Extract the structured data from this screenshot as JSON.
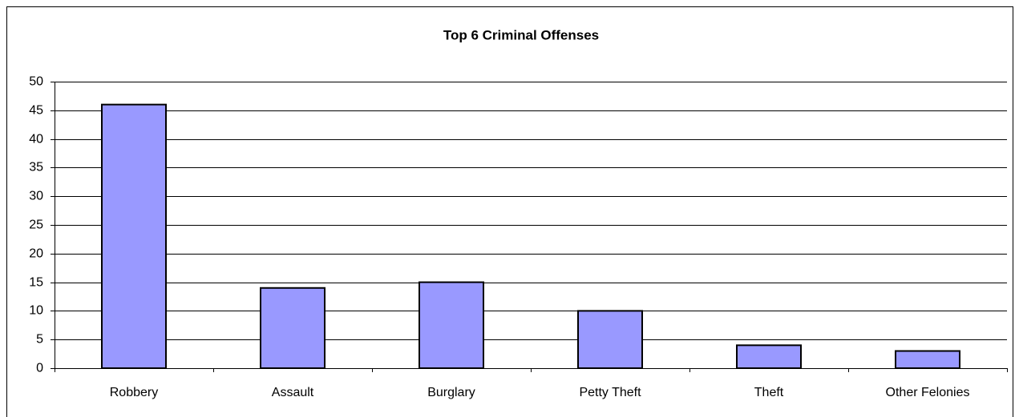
{
  "chart_data": {
    "type": "bar",
    "title": "Top 6 Criminal Offenses",
    "categories": [
      "Robbery",
      "Assault",
      "Burglary",
      "Petty Theft",
      "Theft",
      "Other Felonies"
    ],
    "values": [
      46,
      14,
      15,
      10,
      4,
      3
    ],
    "color": "#9999ff",
    "ylim": [
      0,
      50
    ],
    "yticks": [
      0,
      5,
      10,
      15,
      20,
      25,
      30,
      35,
      40,
      45,
      50
    ],
    "grid": true
  }
}
